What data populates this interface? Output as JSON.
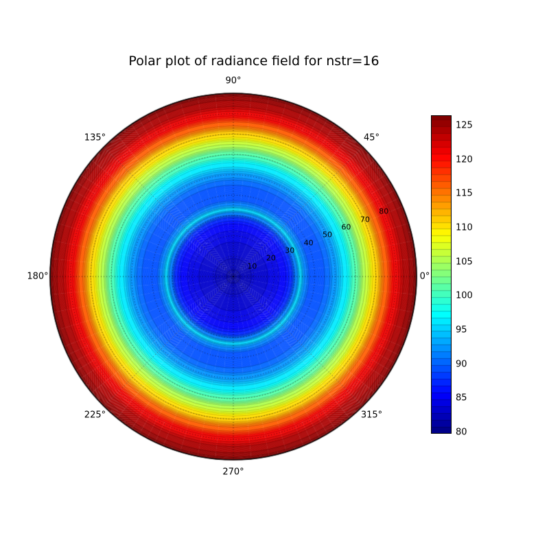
{
  "chart_data": {
    "type": "heatmap",
    "subtype": "polar-filled-contour",
    "title": "Polar plot of radiance field for nstr=16",
    "colormap": "jet",
    "vmin": 80,
    "vmax": 126.5,
    "levels_step": 1,
    "grid": "dotted",
    "azimuthally_symmetric": true,
    "angle_labels": [
      "0°",
      "45°",
      "90°",
      "135°",
      "180°",
      "225°",
      "270°",
      "315°"
    ],
    "radial_ticks": [
      10,
      20,
      30,
      40,
      50,
      60,
      70,
      80
    ],
    "r_max": 90,
    "radial_label_angle": 22.5,
    "colorbar_ticks": [
      80,
      85,
      90,
      95,
      100,
      105,
      110,
      115,
      120,
      125
    ],
    "radial_profile": {
      "r": [
        0,
        2,
        5,
        9,
        14,
        20,
        25,
        28,
        31,
        33,
        35,
        38,
        42,
        46,
        50,
        55,
        60,
        65,
        70,
        75,
        80,
        85,
        90
      ],
      "value": [
        80,
        81.6,
        82.4,
        83.0,
        83.6,
        84.4,
        85.6,
        87.2,
        91.5,
        95.6,
        92.0,
        89.6,
        89.0,
        90.2,
        92.8,
        96.5,
        101,
        106,
        111,
        116.5,
        121.5,
        124.6,
        126.2
      ]
    }
  }
}
